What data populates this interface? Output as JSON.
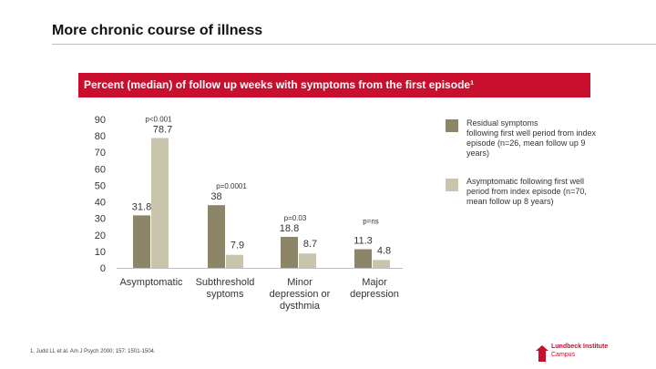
{
  "slide": {
    "title": "More chronic course of illness",
    "banner": "Percent (median) of follow up weeks with symptoms from the first episode¹",
    "footnote": "1. Judd LL et al. Am J Psych 2000; 157: 1501-1504.",
    "logo": {
      "name": "Lundbeck Institute",
      "sub": "Campus",
      "color": "#c8102e"
    }
  },
  "chart_data": {
    "type": "bar",
    "title": "Percent (median) of follow up weeks with symptoms from the first episode¹",
    "xlabel": "",
    "ylabel": "",
    "ylim": [
      0,
      90
    ],
    "yticks": [
      "0",
      "10",
      "20",
      "30",
      "40",
      "50",
      "60",
      "70",
      "80",
      "90"
    ],
    "grid": false,
    "legend_position": "right",
    "categories": [
      [
        "Asymptomatic"
      ],
      [
        "Subthreshold",
        "syptoms"
      ],
      [
        "Minor",
        "depression or",
        "dysthmia"
      ],
      [
        "Major",
        "depression"
      ]
    ],
    "p_values": [
      "p<0.001",
      "p=0.0001",
      "p=0.03",
      "p=ns"
    ],
    "series": [
      {
        "name": "Residual symptoms",
        "description": "following first well period from index episode (n=26, mean follow up 9 years)",
        "color": "#8c8567",
        "values": [
          31.8,
          38,
          18.8,
          11.3
        ],
        "labels": [
          "31.8",
          "38",
          "18.8",
          "11.3"
        ]
      },
      {
        "name": "Asymptomatic following first well period from index episode (n=70, mean follow up 8 years)",
        "description": "",
        "color": "#c9c5ad",
        "values": [
          78.7,
          7.9,
          8.7,
          4.8
        ],
        "labels": [
          "78.7",
          "7.9",
          "8.7",
          "4.8"
        ]
      }
    ]
  }
}
